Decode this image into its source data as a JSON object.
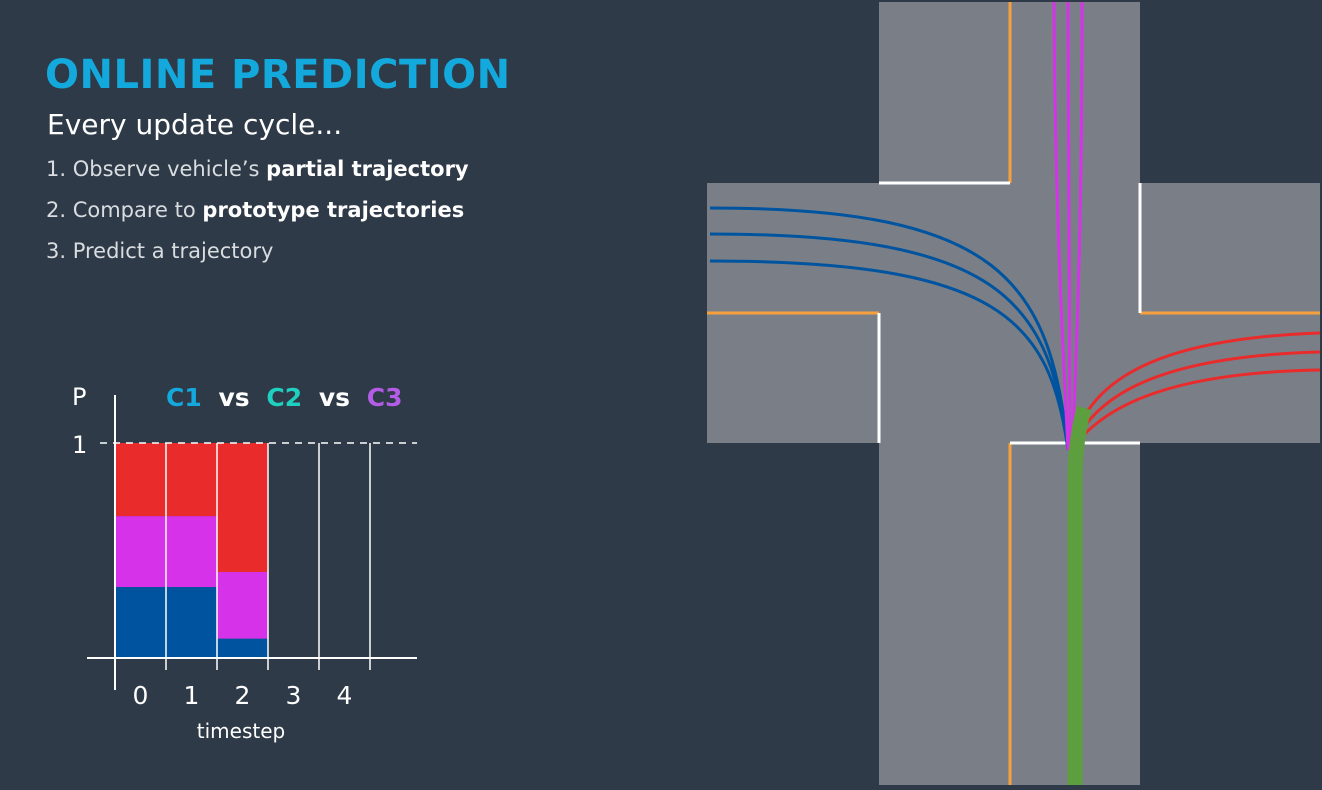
{
  "title": "ONLINE PREDICTION",
  "subtitle": "Every update cycle...",
  "steps": [
    {
      "text": "1. Observe vehicle’s ",
      "bold": "partial trajectory"
    },
    {
      "text": "2. Compare to ",
      "bold": "prototype trajectories"
    },
    {
      "text": "3. Predict a trajectory",
      "bold": ""
    }
  ],
  "colors": {
    "background": "#2e3a47",
    "title": "#14a9dc",
    "c1": "#00549f",
    "c2": "#d532ea",
    "c3": "#e92b2b",
    "ego": "#5d9e3f",
    "road": "#7a7f87",
    "lane_center": "#f5a03c"
  },
  "legend": {
    "c1": "C1",
    "c2": "C2",
    "c3": "C3",
    "vs": "vs",
    "c1_color": "#14a9dc",
    "c2_color": "#1fd0c0",
    "c3_color": "#b35ce6"
  },
  "chart_data": {
    "type": "bar",
    "stacked": true,
    "xlabel": "timestep",
    "ylabel": "P",
    "ylim": [
      0,
      1
    ],
    "y_ticks": [
      "1"
    ],
    "categories": [
      "0",
      "1",
      "2",
      "3",
      "4"
    ],
    "series": [
      {
        "color": "#00549f",
        "values": [
          0.33,
          0.33,
          0.09,
          null,
          null
        ]
      },
      {
        "color": "#d532ea",
        "values": [
          0.33,
          0.33,
          0.31,
          null,
          null
        ]
      },
      {
        "color": "#e92b2b",
        "values": [
          0.34,
          0.34,
          0.6,
          null,
          null
        ]
      }
    ]
  },
  "diagram": {
    "type": "intersection",
    "trajectory_groups": [
      {
        "id": "left-turn",
        "color": "#00549f",
        "count": 3
      },
      {
        "id": "straight",
        "color": "#d532ea",
        "count": 3
      },
      {
        "id": "right-turn",
        "color": "#e92b2b",
        "count": 3
      },
      {
        "id": "observed",
        "color": "#5d9e3f",
        "count": 1
      }
    ]
  }
}
